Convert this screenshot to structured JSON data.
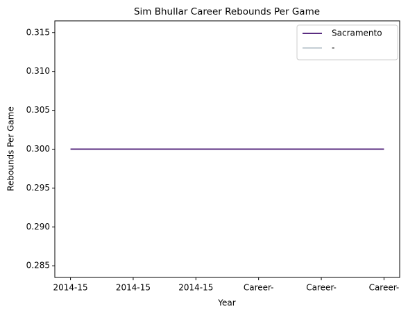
{
  "chart_data": {
    "type": "line",
    "title": "Sim Bhullar Career Rebounds Per Game",
    "xlabel": "Year",
    "ylabel": "Rebounds Per Game",
    "categories": [
      "2014-15",
      "2014-15",
      "2014-15",
      "Career-",
      "Career-",
      "Career-"
    ],
    "series": [
      {
        "name": "Sacramento",
        "color": "#5a2d81",
        "values": [
          0.3,
          0.3,
          0.3,
          0.3,
          0.3,
          0.3
        ]
      },
      {
        "name": "-",
        "color": "#c4ced4",
        "values": [
          null,
          null,
          null,
          null,
          null,
          null
        ]
      }
    ],
    "ylim": [
      0.2835,
      0.3165
    ],
    "yticks": [
      0.285,
      {
        "value": 0.29,
        "label": "0.290"
      },
      0.295,
      {
        "value": 0.3,
        "label": "0.300"
      },
      0.305,
      {
        "value": 0.31,
        "label": "0.310"
      },
      0.315
    ],
    "legend": "upper right",
    "grid": false
  }
}
